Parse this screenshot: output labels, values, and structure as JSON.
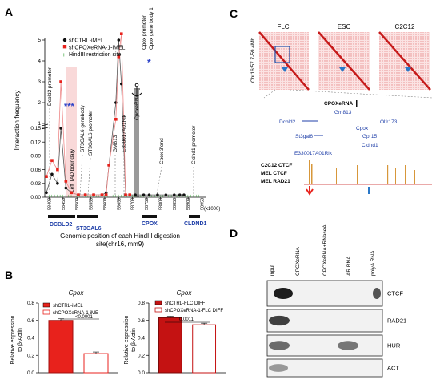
{
  "panels": {
    "a": "A",
    "b": "B",
    "c": "C",
    "d": "D"
  },
  "panel_a": {
    "legend": [
      "shCTRL-iMEL",
      "shCPOXeRNA-1-iMEL",
      "HindIII restriction site"
    ],
    "y_label": "Interaction frequency",
    "y_ticks_top": [
      "5",
      "4",
      "3",
      "2",
      "1"
    ],
    "y_ticks_bottom": [
      "0.15",
      "0.12",
      "0.09",
      "0.06",
      "0.03",
      "0.00"
    ],
    "x_ticks": [
      "58400",
      "58450",
      "58500",
      "58550",
      "58600",
      "58650",
      "58700",
      "58750",
      "58800",
      "58850",
      "58900",
      "58950"
    ],
    "x_unit": "(x1000)",
    "x_label_line1": "Genomic position of each HindIII digestion",
    "x_label_line2": "site(chr16, mm9)",
    "annotations": {
      "dcbld2_promoter": "Dcbld2 promoter",
      "left_tad": "Left TAD boundary",
      "st3gal6_genebody": "ST3GAL6 genebody",
      "st3gal6_promoter": "ST3GAL6 promoter",
      "gm813": "GM813",
      "e330017": "E330017A01Rik",
      "cpoxerna": "CpoxeRNA",
      "cpox_promoter": "Cpox promoter",
      "cpox_genebody": "Cpox gene body 1",
      "cpox_3end": "Cpox 3'end",
      "cldnd1_promoter": "Cldnd1 promoter",
      "stars_blue": "***",
      "star_single": "*"
    },
    "genes": [
      "DCBLD2",
      "ST3GAL6",
      "CPOX",
      "CLDND1"
    ]
  },
  "panel_b": {
    "title_left": "Cpox",
    "title_right": "Cpox",
    "legend_left": [
      "shCTRL-iMEL",
      "shCPOXeRNA-1-iME"
    ],
    "legend_right": [
      "shCTRL-FLC DIFF",
      "shCPOXeRNA-1-FLC DIFF"
    ],
    "pvalue_left": "<0.0001",
    "pvalue_right": "0.0011",
    "y_label_left": "Relative expression",
    "y_label_right": "Relative expression",
    "y_label_suffix": "to β-Actin",
    "ticks_left": [
      "0.8",
      "0.6",
      "0.4",
      "0.2",
      "0.0"
    ],
    "ticks_right": [
      "0.8",
      "0.6",
      "0.4",
      "0.2",
      "0.0"
    ]
  },
  "panel_c": {
    "maps": [
      "FLC",
      "ESC",
      "C2C12"
    ],
    "region": "Chr16:57.7-59.4Mb",
    "genes": [
      "CPOXeRNA",
      "Gm813",
      "Dcbld2",
      "Olfr173",
      "St3gal6",
      "Cpox",
      "Gpr15",
      "Cldnd1",
      "E330017A01Rik"
    ],
    "tracks": [
      "C2C12 CTCF",
      "MEL CTCF",
      "MEL RAD21"
    ]
  },
  "panel_d": {
    "lanes": [
      "input",
      "CPOXeRNA",
      "CPOXeRNA+RNaseA",
      "AR RNA",
      "polyA RNA"
    ],
    "blots": [
      "CTCF",
      "RAD21",
      "HUR",
      "ACT"
    ]
  },
  "chart_data": [
    {
      "type": "line",
      "title": "",
      "xlabel": "Genomic position of each HindIII digestion site(chr16, mm9)",
      "ylabel": "Interaction frequency",
      "series": [
        {
          "name": "shCTRL-iMEL",
          "x": [
            58390,
            58410,
            58430,
            58442,
            58460,
            58480,
            58505,
            58530,
            58560,
            58590,
            58605,
            58615,
            58640,
            58650,
            58660,
            58675,
            58690,
            58710,
            58740,
            58760,
            58790,
            58820,
            58850,
            58870,
            58885
          ],
          "y": [
            0.01,
            0.05,
            0.03,
            0.15,
            0.02,
            0.01,
            0.005,
            0.005,
            0.005,
            0.005,
            0.01,
            0.07,
            2.0,
            5.0,
            2.9,
            0.005,
            0.005,
            0.005,
            0.005,
            0.005,
            0.005,
            0.005,
            0.005,
            0.005,
            0.005
          ]
        },
        {
          "name": "shCPOXeRNA-1-iMEL",
          "x": [
            58390,
            58410,
            58430,
            58442,
            58460,
            58480,
            58505,
            58530,
            58560,
            58590,
            58605,
            58615,
            58640,
            58650,
            58660,
            58675,
            58690
          ],
          "y": [
            0.045,
            0.08,
            0.06,
            3.0,
            0.035,
            0.01,
            0.005,
            0.005,
            0.005,
            0.005,
            0.005,
            0.07,
            1.2,
            4.2,
            5.3,
            0.005,
            0.005
          ]
        }
      ],
      "y_split": [
        0.15,
        1
      ],
      "ylim": [
        0,
        5.5
      ]
    },
    {
      "type": "bar",
      "title": "Cpox",
      "categories": [
        "shCTRL-iMEL",
        "shCPOXeRNA-1-iME"
      ],
      "values": [
        0.6,
        0.22
      ],
      "ylabel": "Relative expression to β-Actin",
      "ylim": [
        0,
        0.8
      ],
      "colors": [
        "#e8221c",
        "#ffffff"
      ]
    },
    {
      "type": "bar",
      "title": "Cpox",
      "categories": [
        "shCTRL-FLC DIFF",
        "shCPOXeRNA-1-FLC DIFF"
      ],
      "values": [
        0.63,
        0.55
      ],
      "ylabel": "Relative expression to β-Actin",
      "ylim": [
        0,
        0.8
      ],
      "colors": [
        "#c41212",
        "#ffffff"
      ]
    }
  ]
}
